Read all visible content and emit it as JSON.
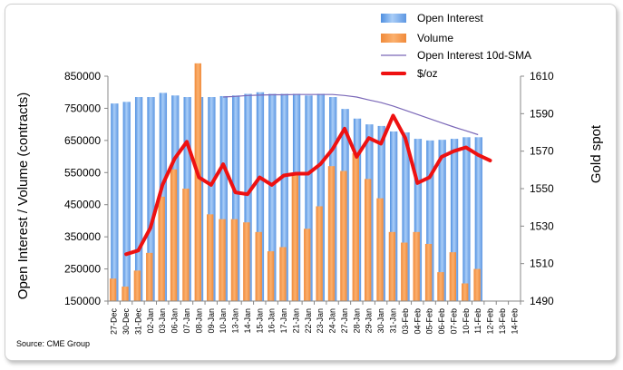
{
  "chart_data": {
    "type": "bar",
    "categories": [
      "27-Dec",
      "30-Dec",
      "31-Dec",
      "02-Jan",
      "03-Jan",
      "06-Jan",
      "07-Jan",
      "08-Jan",
      "09-Jan",
      "10-Jan",
      "13-Jan",
      "14-Jan",
      "15-Jan",
      "16-Jan",
      "17-Jan",
      "21-Jan",
      "22-Jan",
      "23-Jan",
      "24-Jan",
      "27-Jan",
      "28-Jan",
      "29-Jan",
      "30-Jan",
      "31-Jan",
      "03-Feb",
      "04-Feb",
      "05-Feb",
      "06-Feb",
      "07-Feb",
      "10-Feb",
      "11-Feb",
      "12-Feb",
      "13-Feb",
      "14-Feb"
    ],
    "series": [
      {
        "name": "Open Interest",
        "type": "bar",
        "axis": "left",
        "color": "#6fa8ea",
        "values": [
          765000,
          770000,
          785000,
          785000,
          798000,
          790000,
          785000,
          785000,
          785000,
          788000,
          790000,
          795000,
          800000,
          795000,
          795000,
          795000,
          790000,
          795000,
          785000,
          748000,
          718000,
          700000,
          695000,
          678000,
          675000,
          655000,
          650000,
          652000,
          655000,
          660000,
          660000,
          null,
          null,
          null
        ]
      },
      {
        "name": "Volume",
        "type": "bar",
        "axis": "left",
        "color": "#f79646",
        "values": [
          220000,
          195000,
          245000,
          300000,
          475000,
          560000,
          500000,
          890000,
          420000,
          405000,
          405000,
          395000,
          365000,
          305000,
          318000,
          545000,
          375000,
          445000,
          570000,
          555000,
          610000,
          530000,
          470000,
          365000,
          332000,
          365000,
          328000,
          240000,
          302000,
          205000,
          250000,
          null,
          null,
          null
        ]
      },
      {
        "name": "Open Interest 10d-SMA",
        "type": "line",
        "axis": "left",
        "color": "#7b68b8",
        "values": [
          null,
          null,
          null,
          null,
          null,
          null,
          null,
          null,
          null,
          785000,
          787000,
          790000,
          791000,
          792000,
          792000,
          793000,
          793000,
          793000,
          793000,
          790000,
          785000,
          776000,
          768000,
          757000,
          744000,
          731000,
          718000,
          705000,
          692000,
          680000,
          668000,
          null,
          null,
          null
        ]
      },
      {
        "name": "$/oz",
        "type": "line",
        "axis": "right",
        "color": "#ee1111",
        "values": [
          null,
          1515,
          1517,
          1529,
          1552,
          1566,
          1575,
          1556,
          1552,
          1563,
          1548,
          1547,
          1556,
          1552,
          1557,
          1558,
          1558,
          1563,
          1571,
          1582,
          1567,
          1577,
          1574,
          1589,
          1577,
          1553,
          1556,
          1567,
          1570,
          1572,
          1568,
          1565,
          null,
          null
        ]
      }
    ],
    "ylabel": "Open Interest / Volume (contracts)",
    "ylabel_right": "Gold spot",
    "ylim": [
      150000,
      850000
    ],
    "ylim_right": [
      1490,
      1610
    ],
    "yticks": [
      "150000",
      "250000",
      "350000",
      "450000",
      "550000",
      "650000",
      "750000",
      "850000"
    ],
    "yticks_right": [
      "1490",
      "1510",
      "1530",
      "1550",
      "1570",
      "1590",
      "1610"
    ],
    "legend_position": "top-right",
    "grid": false
  },
  "source": "Source: CME Group"
}
